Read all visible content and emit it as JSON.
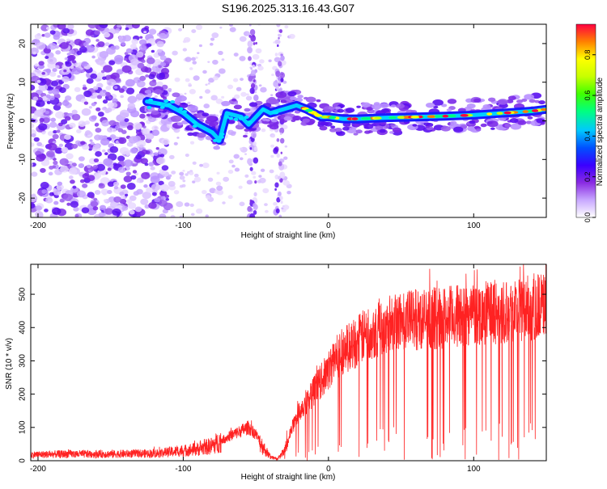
{
  "page_title": "S196.2025.313.16.43.G07",
  "chart_data": [
    {
      "type": "heatmap",
      "title": "S196.2025.313.16.43.G07",
      "xlabel": "Height of straight line (km)",
      "ylabel": "Frequency (Hz)",
      "xlim": [
        -205,
        150
      ],
      "ylim": [
        -25,
        25
      ],
      "xticks": [
        -200,
        -100,
        0,
        100
      ],
      "yticks": [
        -20,
        -10,
        0,
        10,
        20
      ],
      "colorbar": {
        "label": "Normalized spectral amplitude",
        "ticks": [
          0.0,
          0.2,
          0.4,
          0.6,
          0.8
        ],
        "range": [
          0,
          0.95
        ],
        "colors": [
          "#ffffff",
          "#c8a8ff",
          "#8a2be2",
          "#3a00ff",
          "#0050ff",
          "#00c8ff",
          "#00ff80",
          "#40ff00",
          "#c8ff00",
          "#ffff00",
          "#ff8000",
          "#ff0040"
        ]
      },
      "ridge": {
        "description": "dominant frequency trace",
        "x": [
          -125,
          -110,
          -100,
          -90,
          -80,
          -75,
          -70,
          -60,
          -55,
          -45,
          -40,
          -22,
          -15,
          -10,
          -5,
          0,
          10,
          20,
          40,
          60,
          80,
          100,
          120,
          140,
          150
        ],
        "y": [
          5,
          4,
          2,
          -1,
          -3,
          -5,
          2,
          1,
          -1,
          3,
          2,
          4,
          3,
          2,
          1,
          1,
          0.5,
          0.5,
          0.8,
          1,
          1.2,
          1.5,
          2,
          2.5,
          3
        ]
      },
      "vertical_stripes_x": [
        -52,
        -34
      ]
    },
    {
      "type": "line",
      "xlabel": "Height of straight line (km)",
      "ylabel": "SNR (10 * v/v)",
      "xlim": [
        -205,
        150
      ],
      "ylim": [
        0,
        590
      ],
      "xticks": [
        -200,
        -100,
        0,
        100
      ],
      "yticks": [
        0,
        100,
        200,
        300,
        400,
        500
      ],
      "color": "#ff2222",
      "series": [
        {
          "name": "SNR",
          "x": [
            -205,
            -180,
            -150,
            -120,
            -100,
            -90,
            -80,
            -70,
            -60,
            -55,
            -50,
            -45,
            -40,
            -35,
            -30,
            -25,
            -20,
            -15,
            -10,
            -5,
            0,
            5,
            10,
            20,
            30,
            40,
            50,
            60,
            80,
            100,
            120,
            140,
            150
          ],
          "y": [
            18,
            20,
            20,
            22,
            30,
            35,
            45,
            70,
            90,
            100,
            80,
            40,
            12,
            5,
            30,
            100,
            150,
            180,
            210,
            240,
            270,
            310,
            330,
            360,
            390,
            410,
            420,
            425,
            430,
            440,
            450,
            460,
            470
          ]
        }
      ]
    }
  ]
}
